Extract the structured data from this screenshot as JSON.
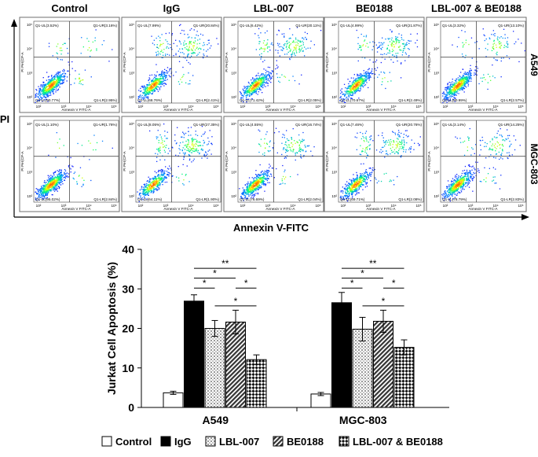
{
  "flow": {
    "columns": [
      "Control",
      "IgG",
      "LBL-007",
      "BE0188",
      "LBL-007 & BE0188"
    ],
    "rows": [
      "A549",
      "MGC-803"
    ],
    "y_axis_label": "PI",
    "x_axis_label": "Annexin V-FITC",
    "panel_x_label": "Annexin V FITC-A",
    "panel_y_label": "PI Per(CP-A",
    "tick_labels": [
      "10²",
      "10³",
      "10⁴",
      "10⁵"
    ],
    "quadrants": [
      [
        {
          "ul": "Q1-UL(3.52%)",
          "ur": "Q1-UR(3.16%)",
          "ll": "Q1-LL(90.77%)",
          "lr": "Q1-LR(2.95%)"
        },
        {
          "ul": "Q1-UL(7.99%)",
          "ur": "Q1-UR(20.84%)",
          "ll": "Q1-LL(68.76%)",
          "lr": "Q1-LR(2.41%)"
        },
        {
          "ul": "Q1-UL(6.42%)",
          "ur": "Q1-UR(20.11%)",
          "ll": "Q1-LL(71.42%)",
          "lr": "Q1-LR(2.05%)"
        },
        {
          "ul": "Q1-UL(4.99%)",
          "ur": "Q1-UR(21.87%)",
          "ll": "Q1-LL(70.67%)",
          "lr": "Q1-LR(2.49%)"
        },
        {
          "ul": "Q1-UL(3.32%)",
          "ur": "Q1-UR(13.10%)",
          "ll": "Q1-LL(80.99%)",
          "lr": "Q1-LR(2.57%)"
        }
      ],
      [
        {
          "ul": "Q1-UL(1.10%)",
          "ur": "Q1-UR(1.76%)",
          "ll": "Q1-LL(95.02%)",
          "lr": "Q1-LR(2.84%)"
        },
        {
          "ul": "Q1-UL(8.05%)",
          "ur": "Q1-UR(27.35%)",
          "ll": "Q1-LL(64.11%)",
          "lr": "Q1-LR(1.90%)"
        },
        {
          "ul": "Q1-UL(4.55%)",
          "ur": "Q1-UR(16.74%)",
          "ll": "Q1-LL(76.69%)",
          "lr": "Q1-LR(2.04%)"
        },
        {
          "ul": "Q1-UL(7.46%)",
          "ur": "Q1-UR(20.76%)",
          "ll": "Q1-LL(69.71%)",
          "lr": "Q1-LR(2.08%)"
        },
        {
          "ul": "Q1-UL(3.14%)",
          "ur": "Q1-UR(14.25%)",
          "ll": "Q1-LL(78.79%)",
          "lr": "Q1-LR(2.83%)"
        }
      ]
    ]
  },
  "chart_data": {
    "type": "bar",
    "categories": [
      "A549",
      "MGC-803"
    ],
    "ylabel": "Jurkat Cell Apoptosis (%)",
    "xlabel": "",
    "ylim": [
      0,
      40
    ],
    "yticks": [
      0,
      10,
      20,
      30,
      40
    ],
    "grid": false,
    "legend_position": "bottom",
    "series": [
      {
        "name": "Control",
        "values": [
          3.7,
          3.4
        ],
        "errors": [
          0.4,
          0.4
        ],
        "pattern": "white"
      },
      {
        "name": "IgG",
        "values": [
          26.9,
          26.5
        ],
        "errors": [
          1.6,
          2.6
        ],
        "pattern": "black"
      },
      {
        "name": "LBL-007",
        "values": [
          20.0,
          19.8
        ],
        "errors": [
          2.0,
          3.0
        ],
        "pattern": "dots"
      },
      {
        "name": "BE0188",
        "values": [
          21.6,
          21.8
        ],
        "errors": [
          3.0,
          2.8
        ],
        "pattern": "diagonal"
      },
      {
        "name": "LBL-007 & BE0188",
        "values": [
          12.1,
          15.2
        ],
        "errors": [
          1.2,
          1.9
        ],
        "pattern": "checker"
      }
    ],
    "significance": [
      {
        "category": "A549",
        "from": "IgG",
        "to": "LBL-007 & BE0188",
        "label": "**",
        "y": 35.2
      },
      {
        "category": "A549",
        "from": "IgG",
        "to": "BE0188",
        "label": "*",
        "y": 32.7
      },
      {
        "category": "A549",
        "from": "IgG",
        "to": "LBL-007",
        "label": "*",
        "y": 30.2
      },
      {
        "category": "A549",
        "from": "BE0188",
        "to": "LBL-007 & BE0188",
        "label": "*",
        "y": 30.2
      },
      {
        "category": "A549",
        "from": "LBL-007",
        "to": "LBL-007 & BE0188",
        "label": "*",
        "y": 25.7
      },
      {
        "category": "MGC-803",
        "from": "IgG",
        "to": "LBL-007 & BE0188",
        "label": "**",
        "y": 35.2
      },
      {
        "category": "MGC-803",
        "from": "IgG",
        "to": "BE0188",
        "label": "*",
        "y": 32.7
      },
      {
        "category": "MGC-803",
        "from": "IgG",
        "to": "LBL-007",
        "label": "*",
        "y": 30.2
      },
      {
        "category": "MGC-803",
        "from": "BE0188",
        "to": "LBL-007 & BE0188",
        "label": "*",
        "y": 30.2
      },
      {
        "category": "MGC-803",
        "from": "LBL-007",
        "to": "LBL-007 & BE0188",
        "label": "*",
        "y": 25.7
      }
    ]
  }
}
